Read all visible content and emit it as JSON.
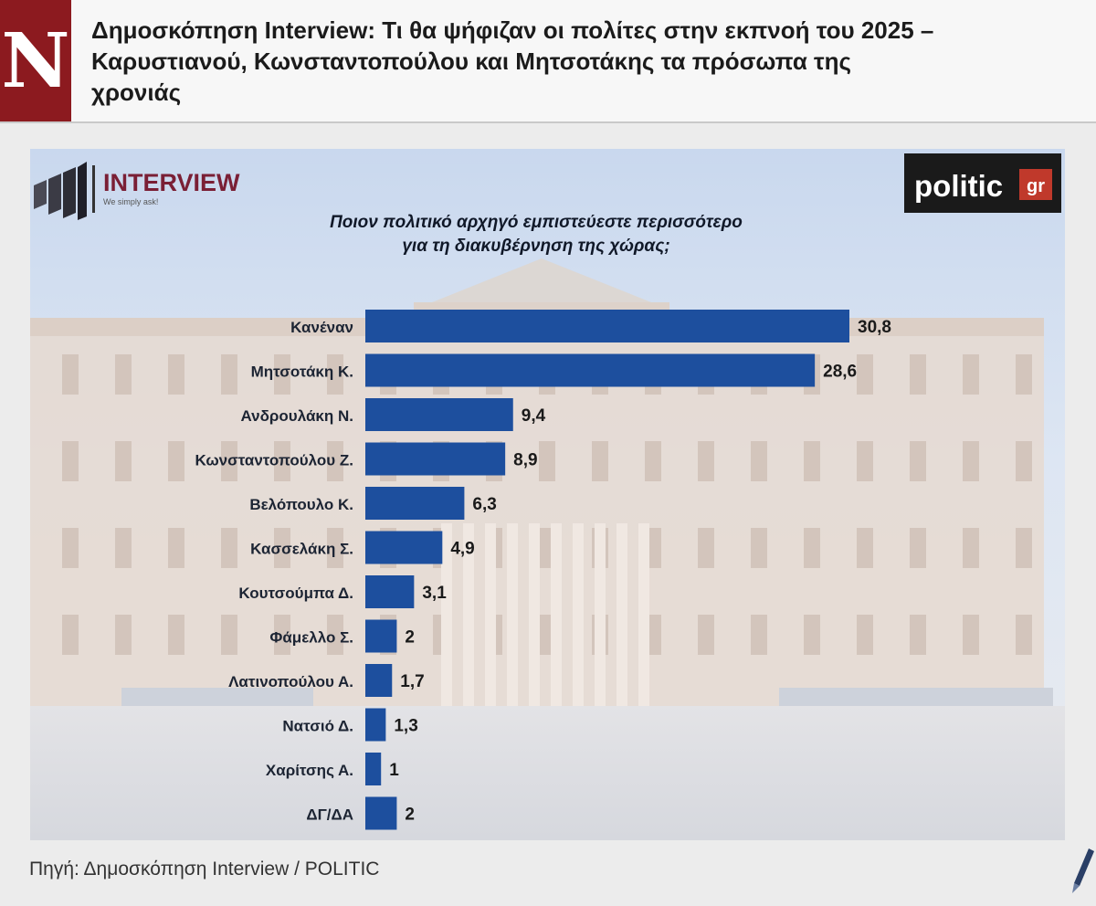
{
  "header": {
    "logo_letter": "N",
    "headline": "Δημοσκόπηση Interview: Τι θα ψήφιζαν οι πολίτες στην εκπνοή του 2025 –\nΚαρυστιανού, Κωνσταντοπούλου και Μητσοτάκης τα πρόσωπα της\nχρονιάς"
  },
  "chart_brand": {
    "interview_name": "INTERVIEW",
    "interview_tagline": "We simply ask!",
    "politic_text": "politic",
    "politic_suffix": "gr"
  },
  "chart_data": {
    "type": "bar",
    "orientation": "horizontal",
    "title": "Ποιον πολιτικό αρχηγό εμπιστεύεστε περισσότερο\nγια τη διακυβέρνηση της χώρας;",
    "categories": [
      "Κανέναν",
      "Μητσοτάκη Κ.",
      "Ανδρουλάκη Ν.",
      "Κωνσταντοπούλου Ζ.",
      "Βελόπουλο Κ.",
      "Κασσελάκη Σ.",
      "Κουτσούμπα Δ.",
      "Φάμελλο Σ.",
      "Λατινοπούλου Α.",
      "Νατσιό Δ.",
      "Χαρίτσης Α.",
      "ΔΓ/ΔΑ"
    ],
    "values": [
      30.8,
      28.6,
      9.4,
      8.9,
      6.3,
      4.9,
      3.1,
      2,
      1.7,
      1.3,
      1,
      2
    ],
    "value_labels": [
      "30,8",
      "28,6",
      "9,4",
      "8,9",
      "6,3",
      "4,9",
      "3,1",
      "2",
      "1,7",
      "1,3",
      "1",
      "2"
    ],
    "bar_color": "#1d4f9e",
    "xlim": [
      0,
      30.8
    ],
    "grid": false,
    "legend": "none"
  },
  "footer": {
    "source": "Πηγή: Δημοσκόπηση Interview / POLITIC"
  }
}
